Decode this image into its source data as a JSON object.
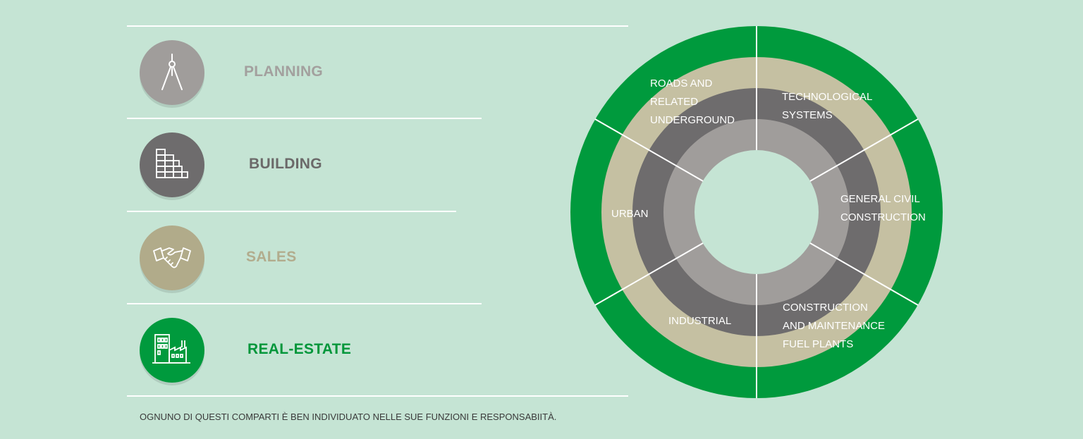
{
  "categories": [
    {
      "id": "planning",
      "label": "PLANNING",
      "icon": "compass-icon",
      "color": "#a09d9b",
      "text_color": "#a3a09e"
    },
    {
      "id": "building",
      "label": "BUILDING",
      "icon": "brick-wall-icon",
      "color": "#6e6c6d",
      "text_color": "#6b6969"
    },
    {
      "id": "sales",
      "label": "SALES",
      "icon": "handshake-icon",
      "color": "#b1ab8a",
      "text_color": "#b2ac8d"
    },
    {
      "id": "real_estate",
      "label": "REAL-ESTATE",
      "icon": "buildings-icon",
      "color": "#009a3d",
      "text_color": "#00963a"
    }
  ],
  "footer_note": "OGNUNO DI QUESTI COMPARTI È BEN INDIVIDUATO NELLE SUE FUNZIONI E RESPONSABIITÀ.",
  "wheel": {
    "ring_colors": [
      "#009a3d",
      "#c5c0a2",
      "#6e6c6d",
      "#a09d9b"
    ],
    "sectors": [
      {
        "lines": [
          "ROADS AND",
          "RELATED",
          "UNDERGROUND"
        ]
      },
      {
        "lines": [
          "TECHNOLOGICAL",
          "SYSTEMS"
        ]
      },
      {
        "lines": [
          "GENERAL CIVIL",
          "CONSTRUCTION"
        ]
      },
      {
        "lines": [
          "CONSTRUCTION",
          "AND MAINTENANCE",
          "FUEL PLANTS"
        ]
      },
      {
        "lines": [
          "INDUSTRIAL"
        ]
      },
      {
        "lines": [
          "URBAN"
        ]
      }
    ]
  },
  "background": "#c5e4d4"
}
